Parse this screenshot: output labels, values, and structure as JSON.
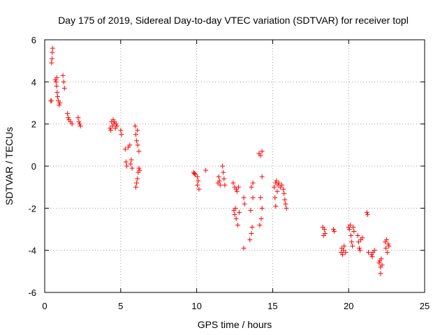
{
  "chart_data": {
    "type": "scatter",
    "title": "Day 175 of 2019, Sidereal Day-to-day VTEC variation (SDTVAR) for receiver topl",
    "xlabel": "GPS time / hours",
    "ylabel": "SDTVAR / TECUs",
    "xlim": [
      0,
      25
    ],
    "ylim": [
      -6,
      6
    ],
    "xticks": [
      "0",
      "5",
      "10",
      "15",
      "20",
      "25"
    ],
    "yticks": [
      "-6",
      "-4",
      "-2",
      "0",
      "2",
      "4",
      "6"
    ],
    "grid": true,
    "marker": "+",
    "color": "#ff0000",
    "series": [
      {
        "name": "SDTVAR",
        "points": [
          [
            0.4,
            3.1
          ],
          [
            0.45,
            3.1
          ],
          [
            0.45,
            4.9
          ],
          [
            0.48,
            5.1
          ],
          [
            0.5,
            5.4
          ],
          [
            0.52,
            5.6
          ],
          [
            0.7,
            4.1
          ],
          [
            0.75,
            4.0
          ],
          [
            0.78,
            3.8
          ],
          [
            0.8,
            4.2
          ],
          [
            0.82,
            3.5
          ],
          [
            0.85,
            3.3
          ],
          [
            0.9,
            3.1
          ],
          [
            0.95,
            2.9
          ],
          [
            1.0,
            3.0
          ],
          [
            1.2,
            4.3
          ],
          [
            1.25,
            4.0
          ],
          [
            1.3,
            3.7
          ],
          [
            1.5,
            2.5
          ],
          [
            1.55,
            2.3
          ],
          [
            1.6,
            2.2
          ],
          [
            1.7,
            2.1
          ],
          [
            1.8,
            2.0
          ],
          [
            2.2,
            2.3
          ],
          [
            2.25,
            2.1
          ],
          [
            2.3,
            2.0
          ],
          [
            2.35,
            1.9
          ],
          [
            4.3,
            1.8
          ],
          [
            4.35,
            1.7
          ],
          [
            4.4,
            2.1
          ],
          [
            4.45,
            1.9
          ],
          [
            4.5,
            2.2
          ],
          [
            4.55,
            2.0
          ],
          [
            4.6,
            2.1
          ],
          [
            4.65,
            1.8
          ],
          [
            4.7,
            2.0
          ],
          [
            4.75,
            1.9
          ],
          [
            5.0,
            1.7
          ],
          [
            5.05,
            1.5
          ],
          [
            5.3,
            0.8
          ],
          [
            5.35,
            0.2
          ],
          [
            5.4,
            0.0
          ],
          [
            5.5,
            0.9
          ],
          [
            5.6,
            1.0
          ],
          [
            5.65,
            0.1
          ],
          [
            5.7,
            0.3
          ],
          [
            5.75,
            -0.1
          ],
          [
            5.95,
            1.9
          ],
          [
            6.0,
            1.5
          ],
          [
            6.0,
            -1.0
          ],
          [
            6.05,
            1.2
          ],
          [
            6.05,
            -0.8
          ],
          [
            6.1,
            1.7
          ],
          [
            6.1,
            -0.6
          ],
          [
            6.12,
            1.0
          ],
          [
            6.15,
            -0.3
          ],
          [
            6.2,
            0.7
          ],
          [
            6.2,
            -0.1
          ],
          [
            6.25,
            -0.2
          ],
          [
            9.8,
            -0.3
          ],
          [
            9.85,
            -0.35
          ],
          [
            9.9,
            -0.4
          ],
          [
            10.05,
            -0.5
          ],
          [
            10.05,
            -0.9
          ],
          [
            10.1,
            -0.7
          ],
          [
            10.15,
            -1.1
          ],
          [
            10.6,
            -0.2
          ],
          [
            11.4,
            -0.8
          ],
          [
            11.45,
            -0.5
          ],
          [
            11.5,
            -0.7
          ],
          [
            11.55,
            -0.9
          ],
          [
            11.7,
            0.0
          ],
          [
            11.75,
            -0.3
          ],
          [
            11.8,
            -0.6
          ],
          [
            11.85,
            -0.9
          ],
          [
            12.4,
            -0.8
          ],
          [
            12.45,
            -2.1
          ],
          [
            12.5,
            -1.0
          ],
          [
            12.5,
            -2.3
          ],
          [
            12.55,
            -2.0
          ],
          [
            12.6,
            -1.1
          ],
          [
            12.6,
            -2.5
          ],
          [
            12.65,
            -1.2
          ],
          [
            12.7,
            -2.8
          ],
          [
            12.75,
            -1.0
          ],
          [
            12.8,
            -2.2
          ],
          [
            13.1,
            -1.5
          ],
          [
            13.1,
            -3.9
          ],
          [
            13.15,
            -1.8
          ],
          [
            13.5,
            -3.5
          ],
          [
            13.55,
            -2.1
          ],
          [
            13.6,
            -3.2
          ],
          [
            13.6,
            -1.0
          ],
          [
            13.65,
            -2.9
          ],
          [
            13.7,
            -1.5
          ],
          [
            13.7,
            -0.8
          ],
          [
            14.1,
            0.6
          ],
          [
            14.15,
            -2.8
          ],
          [
            14.2,
            0.5
          ],
          [
            14.2,
            -1.5
          ],
          [
            14.25,
            -2.5
          ],
          [
            14.3,
            0.7
          ],
          [
            14.3,
            -0.5
          ],
          [
            14.3,
            -2.0
          ],
          [
            15.1,
            -1.0
          ],
          [
            15.15,
            -1.5
          ],
          [
            15.2,
            -0.8
          ],
          [
            15.2,
            -1.9
          ],
          [
            15.25,
            -0.7
          ],
          [
            15.3,
            -1.2
          ],
          [
            15.35,
            -0.9
          ],
          [
            15.4,
            -0.8
          ],
          [
            15.5,
            -1.0
          ],
          [
            15.6,
            -0.9
          ],
          [
            15.7,
            -1.1
          ],
          [
            15.75,
            -1.3
          ],
          [
            15.8,
            -1.6
          ],
          [
            15.85,
            -1.8
          ],
          [
            15.9,
            -2.0
          ],
          [
            18.3,
            -2.9
          ],
          [
            18.35,
            -3.3
          ],
          [
            18.4,
            -3.0
          ],
          [
            18.45,
            -3.2
          ],
          [
            19.0,
            -3.0
          ],
          [
            19.05,
            -3.1
          ],
          [
            19.5,
            -4.1
          ],
          [
            19.55,
            -3.9
          ],
          [
            19.6,
            -4.2
          ],
          [
            19.65,
            -4.0
          ],
          [
            19.7,
            -3.8
          ],
          [
            19.8,
            -4.1
          ],
          [
            20.0,
            -2.9
          ],
          [
            20.05,
            -3.0
          ],
          [
            20.1,
            -2.8
          ],
          [
            20.15,
            -3.3
          ],
          [
            20.2,
            -3.6
          ],
          [
            20.25,
            -3.8
          ],
          [
            20.3,
            -2.9
          ],
          [
            20.35,
            -3.1
          ],
          [
            20.6,
            -3.3
          ],
          [
            20.65,
            -3.6
          ],
          [
            20.7,
            -3.9
          ],
          [
            20.75,
            -4.0
          ],
          [
            20.8,
            -3.5
          ],
          [
            20.9,
            -3.4
          ],
          [
            21.2,
            -2.2
          ],
          [
            21.25,
            -2.3
          ],
          [
            21.3,
            -4.1
          ],
          [
            21.5,
            -4.2
          ],
          [
            21.55,
            -4.3
          ],
          [
            21.6,
            -4.1
          ],
          [
            21.7,
            -4.0
          ],
          [
            22.0,
            -4.6
          ],
          [
            22.05,
            -4.5
          ],
          [
            22.1,
            -5.1
          ],
          [
            22.1,
            -4.8
          ],
          [
            22.15,
            -4.4
          ],
          [
            22.2,
            -4.7
          ],
          [
            22.4,
            -3.6
          ],
          [
            22.45,
            -3.9
          ],
          [
            22.5,
            -3.5
          ],
          [
            22.55,
            -4.1
          ],
          [
            22.6,
            -3.7
          ],
          [
            22.65,
            -3.8
          ]
        ]
      }
    ]
  }
}
